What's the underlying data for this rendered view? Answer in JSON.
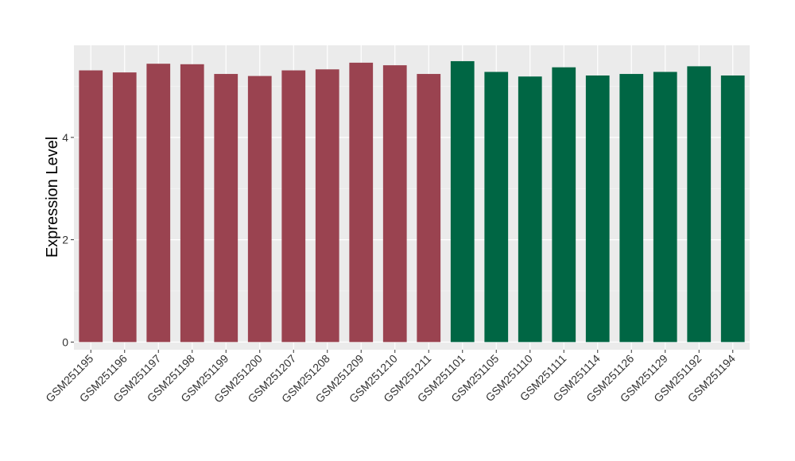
{
  "chart_data": {
    "type": "bar",
    "title": "",
    "xlabel": "",
    "ylabel": "Expression Level",
    "ylim": [
      -0.15,
      5.8
    ],
    "yticks": [
      0,
      2,
      4
    ],
    "grid": true,
    "categories": [
      "GSM251195",
      "GSM251196",
      "GSM251197",
      "GSM251198",
      "GSM251199",
      "GSM251200",
      "GSM251207",
      "GSM251208",
      "GSM251209",
      "GSM251210",
      "GSM251211",
      "GSM251101",
      "GSM251105",
      "GSM251110",
      "GSM251111",
      "GSM251114",
      "GSM251126",
      "GSM251129",
      "GSM251192",
      "GSM251194"
    ],
    "values": [
      5.31,
      5.27,
      5.44,
      5.43,
      5.24,
      5.2,
      5.31,
      5.33,
      5.46,
      5.41,
      5.24,
      5.49,
      5.28,
      5.19,
      5.37,
      5.21,
      5.24,
      5.28,
      5.39,
      5.21
    ],
    "groups": [
      0,
      0,
      0,
      0,
      0,
      0,
      0,
      0,
      0,
      0,
      0,
      1,
      1,
      1,
      1,
      1,
      1,
      1,
      1,
      1
    ],
    "group_colors": [
      "#9A4350",
      "#006644"
    ],
    "panel_background": "#EBEBEB"
  }
}
